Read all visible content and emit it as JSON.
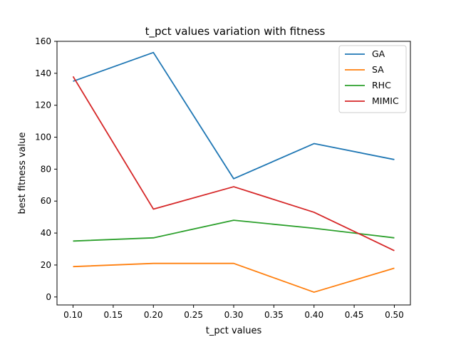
{
  "chart_data": {
    "type": "line",
    "title": "t_pct values variation with fitness",
    "xlabel": "t_pct values",
    "ylabel": "best fitness value",
    "x": [
      0.1,
      0.2,
      0.3,
      0.4,
      0.5
    ],
    "xlim": [
      0.08,
      0.52
    ],
    "ylim": [
      -5,
      160
    ],
    "xticks": [
      "0.10",
      "0.15",
      "0.20",
      "0.25",
      "0.30",
      "0.35",
      "0.40",
      "0.45",
      "0.50"
    ],
    "yticks": [
      "0",
      "20",
      "40",
      "60",
      "80",
      "100",
      "120",
      "140",
      "160"
    ],
    "grid": false,
    "legend_position": "upper right",
    "series": [
      {
        "name": "GA",
        "color": "#1f77b4",
        "values": [
          135,
          153,
          74,
          96,
          86
        ]
      },
      {
        "name": "SA",
        "color": "#ff7f0e",
        "values": [
          19,
          21,
          21,
          3,
          18
        ]
      },
      {
        "name": "RHC",
        "color": "#2ca02c",
        "values": [
          35,
          37,
          48,
          43,
          37
        ]
      },
      {
        "name": "MIMIC",
        "color": "#d62728",
        "values": [
          138,
          55,
          69,
          53,
          29
        ]
      }
    ]
  }
}
